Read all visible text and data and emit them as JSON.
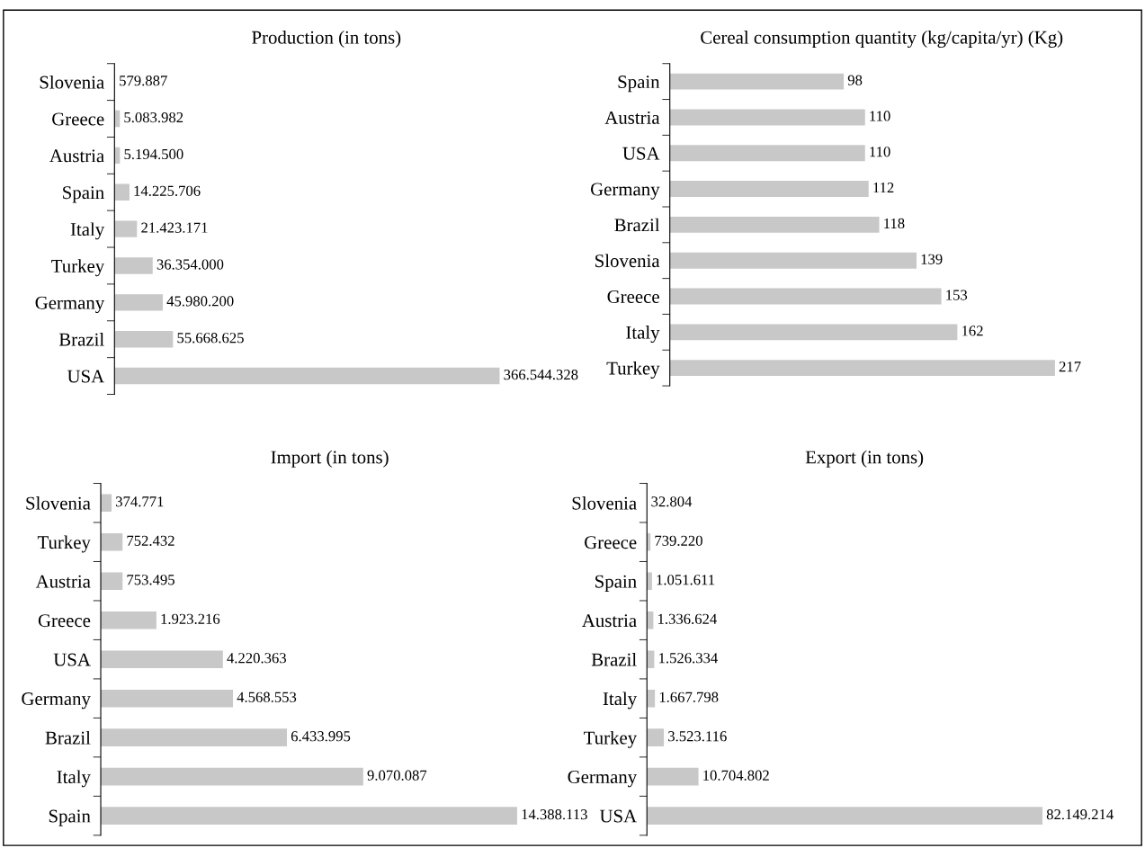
{
  "chart_data": [
    {
      "type": "bar",
      "orientation": "horizontal",
      "title": "Production (in tons)",
      "color": "#c8c8c8",
      "categories": [
        "Slovenia",
        "Greece",
        "Austria",
        "Spain",
        "Italy",
        "Turkey",
        "Germany",
        "Brazil",
        "USA"
      ],
      "values": [
        579887,
        5083982,
        5194500,
        14225706,
        21423171,
        36354000,
        45980200,
        55668625,
        366544328
      ],
      "value_labels": [
        "579.887",
        "5.083.982",
        "5.194.500",
        "14.225.706",
        "21.423.171",
        "36.354.000",
        "45.980.200",
        "55.668.625",
        "366.544.328"
      ]
    },
    {
      "type": "bar",
      "orientation": "horizontal",
      "title": "Cereal consumption quantity (kg/capita/yr) (Kg)",
      "color": "#c8c8c8",
      "categories": [
        "Spain",
        "Austria",
        "USA",
        "Germany",
        "Brazil",
        "Slovenia",
        "Greece",
        "Italy",
        "Turkey"
      ],
      "values": [
        98,
        110,
        110,
        112,
        118,
        139,
        153,
        162,
        217
      ],
      "value_labels": [
        "98",
        "110",
        "110",
        "112",
        "118",
        "139",
        "153",
        "162",
        "217"
      ]
    },
    {
      "type": "bar",
      "orientation": "horizontal",
      "title": "Import (in tons)",
      "color": "#c8c8c8",
      "categories": [
        "Slovenia",
        "Turkey",
        "Austria",
        "Greece",
        "USA",
        "Germany",
        "Brazil",
        "Italy",
        "Spain"
      ],
      "values": [
        374771,
        752432,
        753495,
        1923216,
        4220363,
        4568553,
        6433995,
        9070087,
        14388113
      ],
      "value_labels": [
        "374.771",
        "752.432",
        "753.495",
        "1.923.216",
        "4.220.363",
        "4.568.553",
        "6.433.995",
        "9.070.087",
        "14.388.113"
      ]
    },
    {
      "type": "bar",
      "orientation": "horizontal",
      "title": "Export (in tons)",
      "color": "#c8c8c8",
      "categories": [
        "Slovenia",
        "Greece",
        "Spain",
        "Austria",
        "Brazil",
        "Italy",
        "Turkey",
        "Germany",
        "USA"
      ],
      "values": [
        32804,
        739220,
        1051611,
        1336624,
        1526334,
        1667798,
        3523116,
        10704802,
        82149214
      ],
      "value_labels": [
        "32.804",
        "739.220",
        "1.051.611",
        "1.336.624",
        "1.526.334",
        "1.667.798",
        "3.523.116",
        "10.704.802",
        "82.149.214"
      ]
    }
  ]
}
